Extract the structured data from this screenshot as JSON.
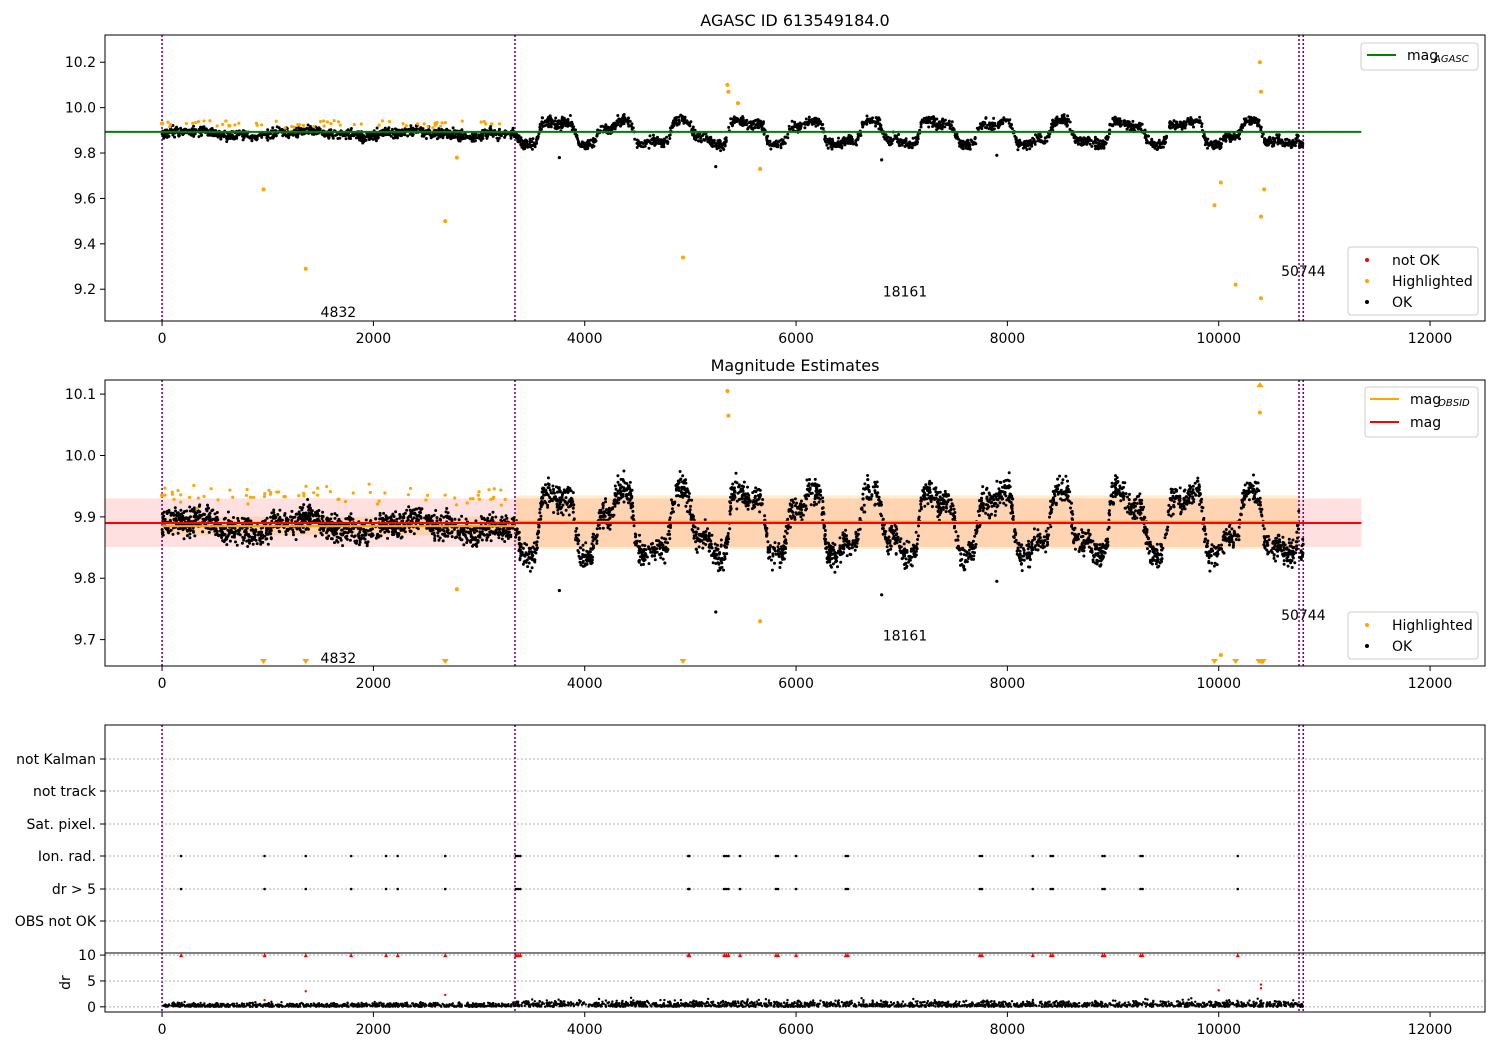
{
  "chart_data": [
    {
      "type": "scatter",
      "title": "AGASC ID 613549184.0",
      "xlim": [
        -540,
        12520
      ],
      "ylim": [
        9.06,
        10.32
      ],
      "xticks": [
        0,
        2000,
        4000,
        6000,
        8000,
        10000,
        12000
      ],
      "yticks": [
        9.2,
        9.4,
        9.6,
        9.8,
        10.0,
        10.2
      ],
      "obs_boundaries": [
        0,
        3340,
        10760,
        10800
      ],
      "obs_labels": [
        {
          "text": "4832",
          "x": 1500,
          "y": 9.1
        },
        {
          "text": "18161",
          "x": 6820,
          "y": 9.19
        },
        {
          "text": "50744",
          "x": 10590,
          "y": 9.28
        }
      ],
      "mean_line": {
        "name": "mag_AGASC",
        "value": 9.893,
        "x": [
          -540,
          11350
        ],
        "color": "#008000"
      },
      "legend_top": [
        {
          "label": "mag",
          "subscript": "AGASC",
          "color": "#008000",
          "kind": "line"
        }
      ],
      "legend_bottom": [
        {
          "label": "not OK",
          "color": "#ff0000",
          "kind": "dot"
        },
        {
          "label": "Highlighted",
          "color": "#ffa500",
          "kind": "dot"
        },
        {
          "label": "OK",
          "color": "#000000",
          "kind": "dot"
        }
      ],
      "highlighted_points": [
        [
          0,
          9.93
        ],
        [
          960,
          9.64
        ],
        [
          1360,
          9.29
        ],
        [
          2680,
          9.5
        ],
        [
          2790,
          9.78
        ],
        [
          4930,
          9.34
        ],
        [
          5350,
          10.1
        ],
        [
          5360,
          10.07
        ],
        [
          5450,
          10.02
        ],
        [
          5660,
          9.73
        ],
        [
          9960,
          9.57
        ],
        [
          10020,
          9.67
        ],
        [
          10160,
          9.22
        ],
        [
          10390,
          10.2
        ],
        [
          10400,
          10.07
        ],
        [
          10400,
          9.52
        ],
        [
          10400,
          9.16
        ],
        [
          10430,
          9.64
        ]
      ],
      "outlier_points": [
        [
          3760,
          9.78
        ],
        [
          5240,
          9.74
        ],
        [
          6810,
          9.77
        ],
        [
          7900,
          9.79
        ]
      ]
    },
    {
      "type": "scatter",
      "title": "Magnitude Estimates",
      "xlim": [
        -540,
        12520
      ],
      "ylim": [
        9.657,
        10.123
      ],
      "xticks": [
        0,
        2000,
        4000,
        6000,
        8000,
        10000,
        12000
      ],
      "yticks": [
        9.7,
        9.8,
        9.9,
        10.0,
        10.1
      ],
      "obs_boundaries": [
        0,
        3340,
        10760,
        10800
      ],
      "obs_labels": [
        {
          "text": "4832",
          "x": 1500,
          "y": 9.67
        },
        {
          "text": "18161",
          "x": 6820,
          "y": 9.707
        },
        {
          "text": "50744",
          "x": 10590,
          "y": 9.74
        }
      ],
      "mean_line": {
        "name": "mag",
        "value": 9.89,
        "band": [
          9.851,
          9.93
        ],
        "x": [
          -540,
          11350
        ],
        "color": "#ff0000"
      },
      "obsid_means": [
        {
          "x": [
            0,
            3340
          ],
          "value": 9.885,
          "band": [
            9.87,
            9.9
          ]
        },
        {
          "x": [
            3340,
            10760
          ],
          "value": 9.892,
          "band": [
            9.848,
            9.935
          ]
        }
      ],
      "legend_top": [
        {
          "label": "mag",
          "subscript": "OBSID",
          "color": "#ffa500",
          "kind": "line"
        },
        {
          "label": "mag",
          "subscript": "",
          "color": "#ff0000",
          "kind": "line"
        }
      ],
      "legend_bottom": [
        {
          "label": "Highlighted",
          "color": "#ffa500",
          "kind": "dot"
        },
        {
          "label": "OK",
          "color": "#000000",
          "kind": "dot"
        }
      ],
      "highlighted_points": [
        [
          0,
          9.935
        ],
        [
          2790,
          9.782
        ],
        [
          5350,
          10.105
        ],
        [
          5360,
          10.065
        ],
        [
          5660,
          9.73
        ],
        [
          10020,
          9.675
        ],
        [
          10390,
          10.07
        ]
      ],
      "lower_clipped": [
        960,
        1360,
        2680,
        4930,
        9960,
        10160,
        10380,
        10400,
        10410,
        10420
      ],
      "upper_clipped": [
        10390
      ],
      "outlier_points": [
        [
          3760,
          9.78
        ],
        [
          5240,
          9.745
        ],
        [
          6810,
          9.773
        ],
        [
          7900,
          9.795
        ]
      ]
    },
    {
      "type": "scatter",
      "title": "",
      "xlim": [
        -540,
        12520
      ],
      "xticks": [
        0,
        2000,
        4000,
        6000,
        8000,
        10000,
        12000
      ],
      "obs_boundaries": [
        0,
        3340,
        10760,
        10800
      ],
      "flag_categories": [
        "not Kalman",
        "not track",
        "Sat. pixel.",
        "Ion. rad.",
        "dr > 5",
        "OBS not OK"
      ],
      "flag_events": [
        180,
        970,
        1360,
        1790,
        2120,
        2230,
        2680,
        3350,
        3370,
        3390,
        4980,
        4990,
        5320,
        5340,
        5360,
        5470,
        5810,
        5830,
        6000,
        6470,
        6490,
        7740,
        7760,
        8240,
        8410,
        8430,
        8900,
        8920,
        9260,
        9280,
        10180
      ],
      "dr_axis": {
        "label": "dr",
        "ylim": [
          -1,
          10.4
        ],
        "yticks": [
          0,
          5,
          10
        ]
      },
      "dr_outliers": [
        [
          1360,
          3
        ],
        [
          970,
          1.3
        ],
        [
          2680,
          2.3
        ],
        [
          10000,
          3.2
        ],
        [
          10400,
          4.3
        ],
        [
          10400,
          3.6
        ]
      ]
    }
  ]
}
